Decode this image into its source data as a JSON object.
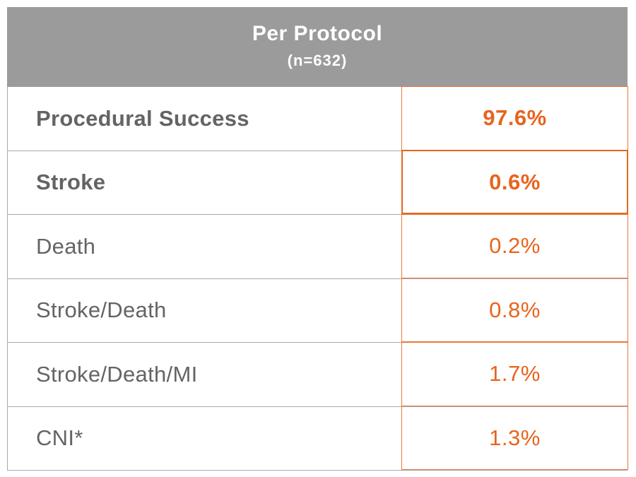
{
  "header": {
    "title": "Per Protocol",
    "subtitle": "(n=632)",
    "background": "#9b9b9c"
  },
  "colors": {
    "value_text": "#e8641c",
    "value_border": "#e8783a",
    "label_text": "#636466",
    "grid": "#a9a9a9"
  },
  "rows": [
    {
      "label": "Procedural Success",
      "value": "97.6%",
      "bold": true
    },
    {
      "label": "Stroke",
      "value": "0.6%",
      "bold": true
    },
    {
      "label": "Death",
      "value": "0.2%",
      "bold": false
    },
    {
      "label": "Stroke/Death",
      "value": "0.8%",
      "bold": false
    },
    {
      "label": "Stroke/Death/MI",
      "value": "1.7%",
      "bold": false
    },
    {
      "label": "CNI*",
      "value": "1.3%",
      "bold": false
    }
  ]
}
